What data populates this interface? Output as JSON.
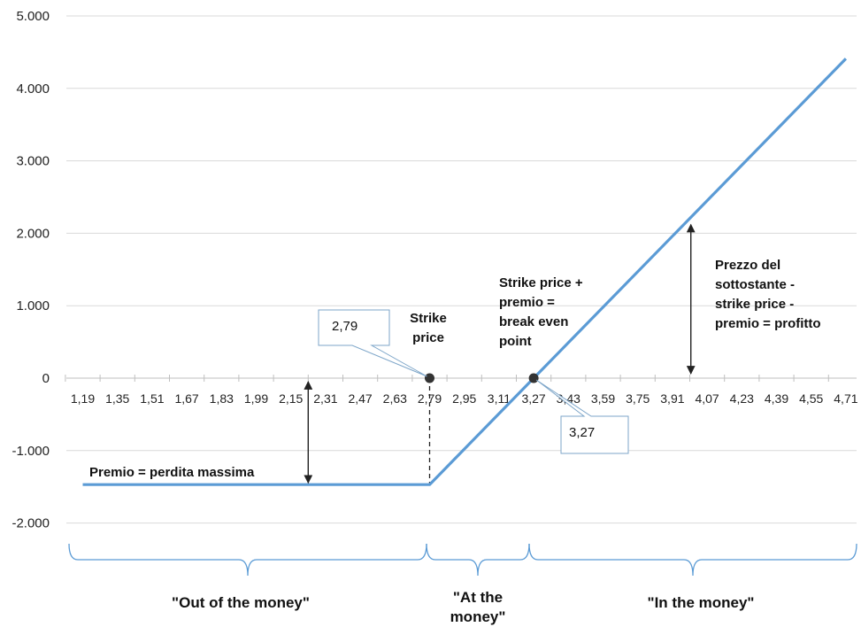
{
  "chart_data": {
    "type": "line",
    "x": [
      "1,19",
      "1,35",
      "1,51",
      "1,67",
      "1,83",
      "1,99",
      "2,15",
      "2,31",
      "2,47",
      "2,63",
      "2,79",
      "2,95",
      "3,11",
      "3,27",
      "3,43",
      "3,59",
      "3,75",
      "3,91",
      "4,07",
      "4,23",
      "4,39",
      "4,55",
      "4,71"
    ],
    "y_ticks": [
      "5.000",
      "4.000",
      "3.000",
      "2.000",
      "1.000",
      "0",
      "-1.000",
      "-2.000"
    ],
    "ylim": [
      -2000,
      5000
    ],
    "grid": true,
    "series": [
      {
        "color": "#5b9bd5",
        "points": [
          {
            "x": 1.19,
            "y": -1470
          },
          {
            "x": 2.79,
            "y": -1470
          },
          {
            "x": 3.27,
            "y": 0
          },
          {
            "x": 4.71,
            "y": 4410
          }
        ]
      }
    ],
    "key_points": [
      {
        "x": 2.79,
        "y": 0
      },
      {
        "x": 3.27,
        "y": 0
      }
    ],
    "annotations": {
      "callout_strike": "2,79",
      "callout_breakeven": "3,27",
      "strike_label": [
        "Strike",
        "price"
      ],
      "breakeven_label": [
        "Strike price +",
        "premio =",
        "break even",
        "point"
      ],
      "profit_label": [
        "Prezzo del",
        "sottostante -",
        "strike price -",
        "premio = profitto"
      ],
      "loss_label": "Premio = perdita massima"
    },
    "regions": {
      "otm": "\"Out of the money\"",
      "atm": [
        "\"At the",
        "money\""
      ],
      "itm": "\"In the money\""
    },
    "colors": {
      "line": "#5b9bd5",
      "brace": "#5b9bd5",
      "grid": "#d9d9d9",
      "point": "#333333"
    }
  }
}
